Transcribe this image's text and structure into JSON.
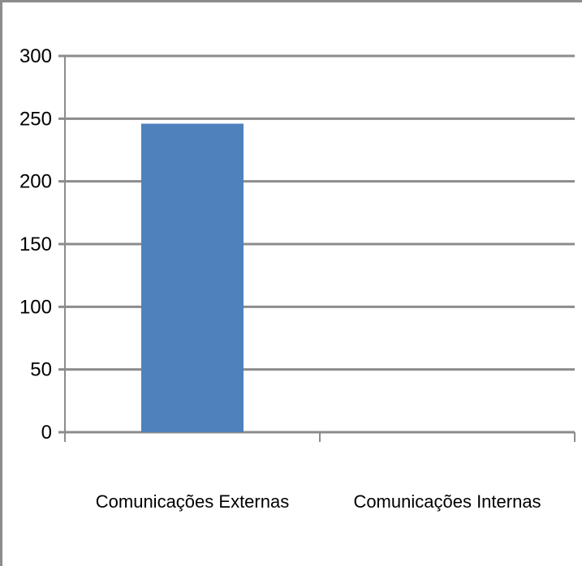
{
  "chart_data": {
    "type": "bar",
    "categories": [
      "Comunicações Externas",
      "Comunicações Internas"
    ],
    "values": [
      246,
      0
    ],
    "yticks": [
      "0",
      "50",
      "100",
      "150",
      "200",
      "250",
      "300"
    ],
    "ylim": [
      0,
      300
    ],
    "grid": true,
    "legend": "none",
    "bar_color": "#4f81bd",
    "grid_color": "#8c8c8c"
  }
}
